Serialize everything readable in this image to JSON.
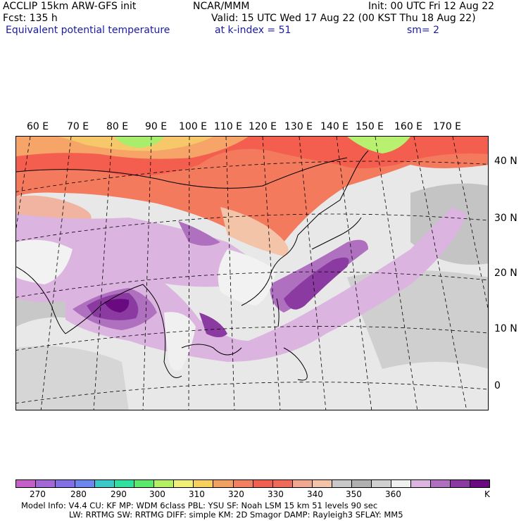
{
  "header": {
    "left_line1": "ACCLIP 15km ARW-GFS init",
    "left_line2": "Fcst:  135 h",
    "variable": "Equivalent potential temperature",
    "center_line1": "NCAR/MMM",
    "valid": "Valid: 15 UTC Wed 17 Aug 22 (00 KST Thu 18 Aug 22)",
    "level": "at k-index =  51",
    "init": "Init: 00 UTC Fri 12 Aug 22",
    "smooth": "sm= 2"
  },
  "map": {
    "lon_labels": [
      "60 E",
      "70 E",
      "80 E",
      "90 E",
      "100 E",
      "110 E",
      "120 E",
      "130 E",
      "140 E",
      "150 E",
      "160 E",
      "170 E"
    ],
    "lat_labels": [
      "40 N",
      "30 N",
      "20 N",
      "10 N",
      "0"
    ]
  },
  "colorbar": {
    "colors": [
      "#c45fc8",
      "#a467d6",
      "#8470e4",
      "#6c88ee",
      "#3cc8c8",
      "#30e0a0",
      "#5ce86c",
      "#b4f064",
      "#f0f078",
      "#f8d060",
      "#f0a060",
      "#f08060",
      "#f06050",
      "#f06a5a",
      "#f0a890",
      "#f4c4a8",
      "#c8c8c8",
      "#b0b0b0",
      "#d0d0d0",
      "#f0f0f0",
      "#dcb4e0",
      "#b070c0",
      "#8a3aa0",
      "#6a0a80"
    ],
    "ticks": [
      "270",
      "280",
      "290",
      "300",
      "310",
      "320",
      "330",
      "340",
      "350",
      "360",
      "K"
    ],
    "unit": "K"
  },
  "footer": {
    "line1": "Model Info: V4.4      CU: KF       MP: WDM 6class   PBL: YSU        SF: Noah LSM      15 km     51 levels     90 sec",
    "line2": "LW: RRTMG     SW: RRTMG   DIFF: simple KM: 2D Smagor DAMP: Rayleigh3   SFLAY: MM5"
  }
}
